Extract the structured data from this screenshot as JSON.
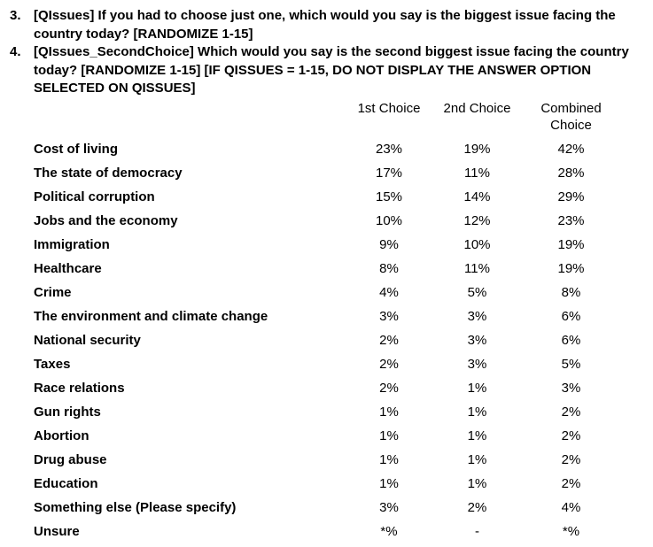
{
  "colors": {
    "text": "#000000",
    "background": "#ffffff"
  },
  "questions": [
    {
      "number": "3.",
      "text": "[QIssues] If you had to choose just one, which would you say is the biggest issue facing the country today? [RANDOMIZE 1-15]"
    },
    {
      "number": "4.",
      "text": "[QIssues_SecondChoice] Which would you say is the second biggest issue facing the country today? [RANDOMIZE 1-15] [IF QISSUES = 1-15, DO NOT DISPLAY THE ANSWER OPTION SELECTED ON QISSUES]"
    }
  ],
  "table": {
    "columns": [
      "1st Choice",
      "2nd Choice",
      "Combined Choice"
    ],
    "rows": [
      {
        "label": "Cost of living",
        "first": "23%",
        "second": "19%",
        "combined": "42%"
      },
      {
        "label": "The state of democracy",
        "first": "17%",
        "second": "11%",
        "combined": "28%"
      },
      {
        "label": "Political corruption",
        "first": "15%",
        "second": "14%",
        "combined": "29%"
      },
      {
        "label": "Jobs and the economy",
        "first": "10%",
        "second": "12%",
        "combined": "23%"
      },
      {
        "label": "Immigration",
        "first": "9%",
        "second": "10%",
        "combined": "19%"
      },
      {
        "label": "Healthcare",
        "first": "8%",
        "second": "11%",
        "combined": "19%"
      },
      {
        "label": "Crime",
        "first": "4%",
        "second": "5%",
        "combined": "8%"
      },
      {
        "label": "The environment and climate change",
        "first": "3%",
        "second": "3%",
        "combined": "6%"
      },
      {
        "label": "National security",
        "first": "2%",
        "second": "3%",
        "combined": "6%"
      },
      {
        "label": "Taxes",
        "first": "2%",
        "second": "3%",
        "combined": "5%"
      },
      {
        "label": "Race relations",
        "first": "2%",
        "second": "1%",
        "combined": "3%"
      },
      {
        "label": "Gun rights",
        "first": "1%",
        "second": "1%",
        "combined": "2%"
      },
      {
        "label": "Abortion",
        "first": "1%",
        "second": "1%",
        "combined": "2%"
      },
      {
        "label": "Drug abuse",
        "first": "1%",
        "second": "1%",
        "combined": "2%"
      },
      {
        "label": "Education",
        "first": "1%",
        "second": "1%",
        "combined": "2%"
      },
      {
        "label": "Something else (Please specify)",
        "first": "3%",
        "second": "2%",
        "combined": "4%"
      },
      {
        "label": "Unsure",
        "first": "*%",
        "second": "-",
        "combined": "*%"
      }
    ]
  }
}
